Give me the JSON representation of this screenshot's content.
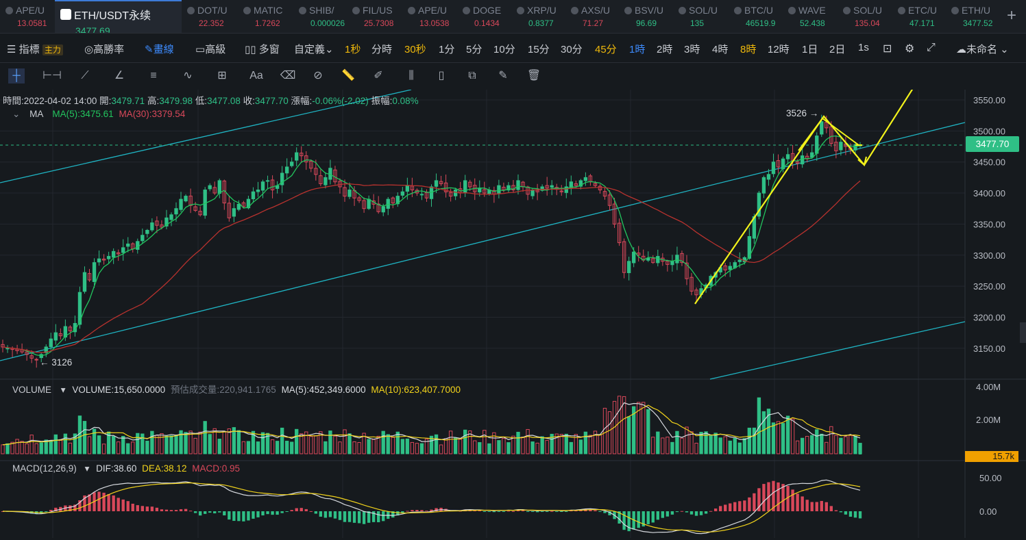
{
  "tabs": [
    {
      "name": "APE/U",
      "price": "13.0581",
      "dir": "dn"
    },
    {
      "name": "ETH/USDT永续",
      "price": "3477.69",
      "dir": "up",
      "active": true
    },
    {
      "name": "DOT/U",
      "price": "22.352",
      "dir": "dn"
    },
    {
      "name": "MATIC",
      "price": "1.7262",
      "dir": "dn"
    },
    {
      "name": "SHIB/",
      "price": "0.000026",
      "dir": "up"
    },
    {
      "name": "FIL/US",
      "price": "25.7308",
      "dir": "dn"
    },
    {
      "name": "APE/U",
      "price": "13.0538",
      "dir": "dn"
    },
    {
      "name": "DOGE",
      "price": "0.1434",
      "dir": "dn"
    },
    {
      "name": "XRP/U",
      "price": "0.8377",
      "dir": "up"
    },
    {
      "name": "AXS/U",
      "price": "71.27",
      "dir": "dn"
    },
    {
      "name": "BSV/U",
      "price": "96.69",
      "dir": "up"
    },
    {
      "name": "SOL/U",
      "price": "135",
      "dir": "up"
    },
    {
      "name": "BTC/U",
      "price": "46519.9",
      "dir": "up"
    },
    {
      "name": "WAVE",
      "price": "52.438",
      "dir": "up"
    },
    {
      "name": "SOL/U",
      "price": "135.04",
      "dir": "dn"
    },
    {
      "name": "ETC/U",
      "price": "47.171",
      "dir": "up"
    },
    {
      "name": "ETH/U",
      "price": "3477.52",
      "dir": "up"
    }
  ],
  "toolbar": {
    "indicator": "指標",
    "main_badge": "主力",
    "win_rate": "高勝率",
    "draw": "畫線",
    "advanced": "高級",
    "multi": "多窗",
    "custom": "自定義",
    "intervals": [
      "1秒",
      "分時",
      "30秒",
      "1分",
      "5分",
      "10分",
      "15分",
      "30分",
      "45分",
      "1時",
      "2時",
      "3時",
      "4時",
      "8時",
      "12時",
      "1日",
      "2日",
      "1s"
    ],
    "active_interval": "1時",
    "highlight_intervals": [
      "1秒",
      "30秒",
      "45分",
      "8時"
    ],
    "layout_name": "未命名"
  },
  "ohlc": {
    "time_label": "時間:",
    "time": "2022-04-02 14:00",
    "open_label": "開:",
    "open": "3479.71",
    "high_label": "高:",
    "high": "3479.98",
    "low_label": "低:",
    "low": "3477.08",
    "close_label": "收:",
    "close": "3477.70",
    "chg_label": "漲幅:",
    "chg": "-0.06%(-2.02)",
    "amp_label": "振幅:",
    "amp": "0.08%"
  },
  "ma": {
    "name": "MA",
    "ma5": "MA(5):3475.61",
    "ma30": "MA(30):3379.54",
    "ma5_color": "#22c55e",
    "ma30_color": "#d9485a"
  },
  "volume": {
    "name": "VOLUME",
    "value": "VOLUME:15,650.0000",
    "est_label": "預估成交量:",
    "est": "220,941.1765",
    "ma5": "MA(5):452,349.6000",
    "ma10": "MA(10):623,407.7000",
    "current_tag": "15.7k"
  },
  "macd": {
    "name": "MACD(12,26,9)",
    "dif": "DIF:38.60",
    "dea": "DEA:38.12",
    "macd": "MACD:0.95"
  },
  "price_axis": [
    "3550.00",
    "3500.00",
    "3450.00",
    "3400.00",
    "3350.00",
    "3300.00",
    "3250.00",
    "3200.00",
    "3150.00"
  ],
  "volume_axis": [
    "4.00M",
    "2.00M"
  ],
  "macd_axis": [
    "50.00",
    "0.00"
  ],
  "current_price": "3477.70",
  "annotations": {
    "high": "3526 →",
    "low": "← 3126"
  },
  "colors": {
    "up": "#2fbf86",
    "down": "#d9485a",
    "accent": "#f0b90b",
    "active": "#3d8bfd",
    "channel": "#1fb5c4",
    "arrow": "#f2f21b"
  },
  "chart_data": {
    "type": "candlestick",
    "interval": "1h",
    "ylim": [
      3120,
      3560
    ],
    "closes": [
      3152,
      3150,
      3148,
      3146,
      3144,
      3140,
      3134,
      3132,
      3140,
      3152,
      3165,
      3175,
      3170,
      3185,
      3178,
      3190,
      3240,
      3272,
      3260,
      3288,
      3294,
      3292,
      3298,
      3306,
      3302,
      3312,
      3318,
      3310,
      3322,
      3332,
      3340,
      3352,
      3348,
      3345,
      3360,
      3365,
      3375,
      3390,
      3395,
      3380,
      3372,
      3365,
      3405,
      3412,
      3400,
      3420,
      3384,
      3360,
      3375,
      3382,
      3378,
      3390,
      3402,
      3405,
      3418,
      3420,
      3405,
      3412,
      3432,
      3442,
      3450,
      3465,
      3460,
      3450,
      3440,
      3430,
      3415,
      3425,
      3440,
      3418,
      3410,
      3395,
      3405,
      3392,
      3388,
      3375,
      3390,
      3382,
      3370,
      3378,
      3390,
      3384,
      3395,
      3402,
      3412,
      3405,
      3400,
      3398,
      3392,
      3410,
      3420,
      3415,
      3402,
      3395,
      3405,
      3400,
      3420,
      3410,
      3402,
      3408,
      3400,
      3405,
      3398,
      3412,
      3405,
      3412,
      3405,
      3420,
      3410,
      3398,
      3405,
      3402,
      3410,
      3408,
      3412,
      3406,
      3402,
      3410,
      3418,
      3412,
      3420,
      3425,
      3418,
      3412,
      3405,
      3395,
      3380,
      3350,
      3320,
      3272,
      3290,
      3305,
      3300,
      3292,
      3295,
      3288,
      3298,
      3290,
      3285,
      3290,
      3300,
      3288,
      3262,
      3242,
      3236,
      3246,
      3252,
      3266,
      3272,
      3280,
      3276,
      3282,
      3288,
      3292,
      3296,
      3330,
      3362,
      3400,
      3425,
      3430,
      3450,
      3442,
      3455,
      3462,
      3452,
      3448,
      3460,
      3455,
      3465,
      3492,
      3515,
      3505,
      3480,
      3468,
      3482,
      3475,
      3470,
      3478,
      3477
    ],
    "ma_overlay": "MA(5), MA(30)",
    "volume_ma": "MA(5), MA(10)",
    "macd_params": [
      12,
      26,
      9
    ]
  }
}
